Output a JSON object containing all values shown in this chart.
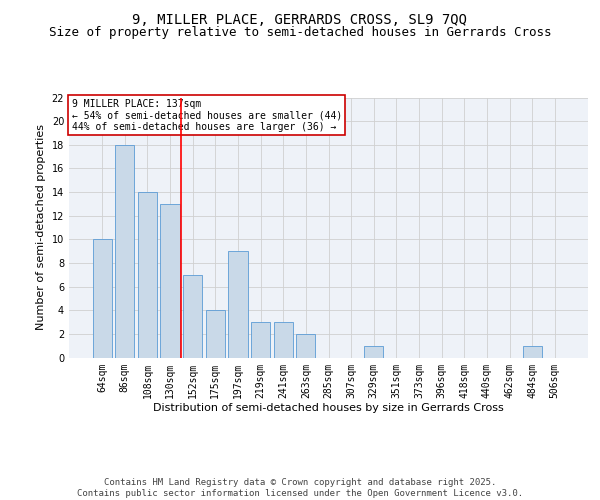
{
  "title": "9, MILLER PLACE, GERRARDS CROSS, SL9 7QQ",
  "subtitle": "Size of property relative to semi-detached houses in Gerrards Cross",
  "xlabel": "Distribution of semi-detached houses by size in Gerrards Cross",
  "ylabel": "Number of semi-detached properties",
  "categories": [
    "64sqm",
    "86sqm",
    "108sqm",
    "130sqm",
    "152sqm",
    "175sqm",
    "197sqm",
    "219sqm",
    "241sqm",
    "263sqm",
    "285sqm",
    "307sqm",
    "329sqm",
    "351sqm",
    "373sqm",
    "396sqm",
    "418sqm",
    "440sqm",
    "462sqm",
    "484sqm",
    "506sqm"
  ],
  "values": [
    10,
    18,
    14,
    13,
    7,
    4,
    9,
    3,
    3,
    2,
    0,
    0,
    1,
    0,
    0,
    0,
    0,
    0,
    0,
    1,
    0
  ],
  "bar_color": "#c9d9e8",
  "bar_edge_color": "#5b9bd5",
  "grid_color": "#d0d0d0",
  "background_color": "#ffffff",
  "plot_bg_color": "#eef2f8",
  "red_line_index": 3,
  "annotation_text": "9 MILLER PLACE: 137sqm\n← 54% of semi-detached houses are smaller (44)\n44% of semi-detached houses are larger (36) →",
  "annotation_box_color": "#cc0000",
  "ylim": [
    0,
    22
  ],
  "yticks": [
    0,
    2,
    4,
    6,
    8,
    10,
    12,
    14,
    16,
    18,
    20,
    22
  ],
  "footer": "Contains HM Land Registry data © Crown copyright and database right 2025.\nContains public sector information licensed under the Open Government Licence v3.0.",
  "title_fontsize": 10,
  "subtitle_fontsize": 9,
  "axis_label_fontsize": 8,
  "tick_fontsize": 7,
  "annotation_fontsize": 7,
  "footer_fontsize": 6.5
}
